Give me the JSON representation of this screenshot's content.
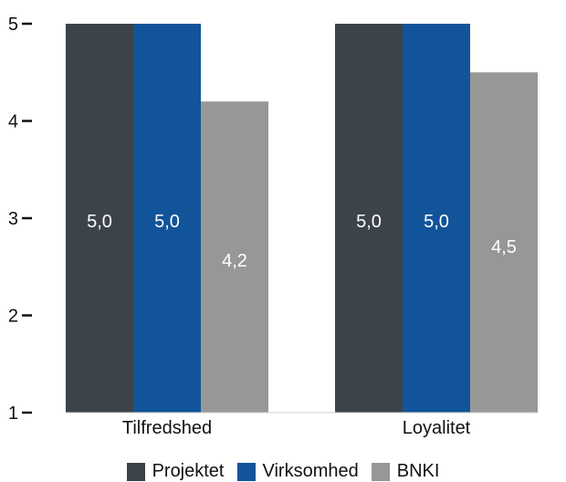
{
  "chart_data": {
    "type": "bar",
    "categories": [
      "Tilfredshed",
      "Loyalitet"
    ],
    "series": [
      {
        "name": "Projektet",
        "color": "#3d434a",
        "values": [
          5.0,
          5.0
        ],
        "labels": [
          "5,0",
          "5,0"
        ]
      },
      {
        "name": "Virksomhed",
        "color": "#12549a",
        "values": [
          5.0,
          5.0
        ],
        "labels": [
          "5,0",
          "5,0"
        ]
      },
      {
        "name": "BNKI",
        "color": "#979797",
        "values": [
          4.2,
          4.5
        ],
        "labels": [
          "4,2",
          "4,5"
        ]
      }
    ],
    "ylim": [
      1,
      5
    ],
    "yticks": [
      "1",
      "2",
      "3",
      "4",
      "5"
    ],
    "grid": false,
    "legend_position": "bottom",
    "title": "",
    "xlabel": "",
    "ylabel": ""
  }
}
